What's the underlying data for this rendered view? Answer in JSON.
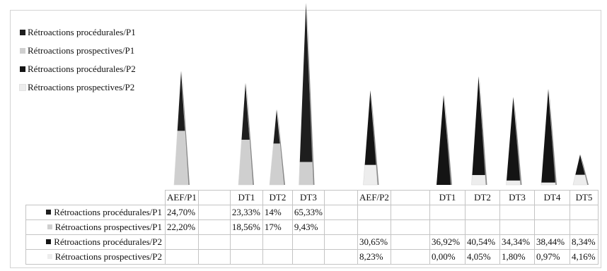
{
  "chart_data": {
    "type": "bar",
    "shape": "cone",
    "stacked": true,
    "categories": [
      "AEF/P1",
      "",
      "DT1",
      "DT2",
      "DT3",
      "",
      "AEF/P2",
      "",
      "DT1",
      "DT2",
      "DT3",
      "DT4",
      "DT5"
    ],
    "series": [
      {
        "name": "Rétroactions procédurales/P1",
        "color": "#1e1e1e",
        "labels": [
          "24,70%",
          "",
          "23,33%",
          "14%",
          "65,33%",
          "",
          "",
          "",
          "",
          "",
          "",
          "",
          ""
        ],
        "values": [
          24.7,
          null,
          23.33,
          14,
          65.33,
          null,
          null,
          null,
          null,
          null,
          null,
          null,
          null
        ]
      },
      {
        "name": "Rétroactions prospectives/P1",
        "color": "#cfcfcf",
        "labels": [
          "22,20%",
          "",
          "18,56%",
          "17%",
          "9,43%",
          "",
          "",
          "",
          "",
          "",
          "",
          "",
          ""
        ],
        "values": [
          22.2,
          null,
          18.56,
          17,
          9.43,
          null,
          null,
          null,
          null,
          null,
          null,
          null,
          null
        ]
      },
      {
        "name": "Rétroactions procédurales/P2",
        "color": "#141414",
        "labels": [
          "",
          "",
          "",
          "",
          "",
          "",
          "30,65%",
          "",
          "36,92%",
          "40,54%",
          "34,34%",
          "38,44%",
          "8,34%"
        ],
        "values": [
          null,
          null,
          null,
          null,
          null,
          null,
          30.65,
          null,
          36.92,
          40.54,
          34.34,
          38.44,
          8.34
        ]
      },
      {
        "name": "Rétroactions prospectives/P2",
        "color": "#ededed",
        "labels": [
          "",
          "",
          "",
          "",
          "",
          "",
          "8,23%",
          "",
          "0,00%",
          "4,05%",
          "1,80%",
          "0,97%",
          "4,16%"
        ],
        "values": [
          null,
          null,
          null,
          null,
          null,
          null,
          8.23,
          null,
          0.0,
          4.05,
          1.8,
          0.97,
          4.16
        ]
      }
    ],
    "legend_position": "top-left",
    "grid": false,
    "data_table": true
  }
}
